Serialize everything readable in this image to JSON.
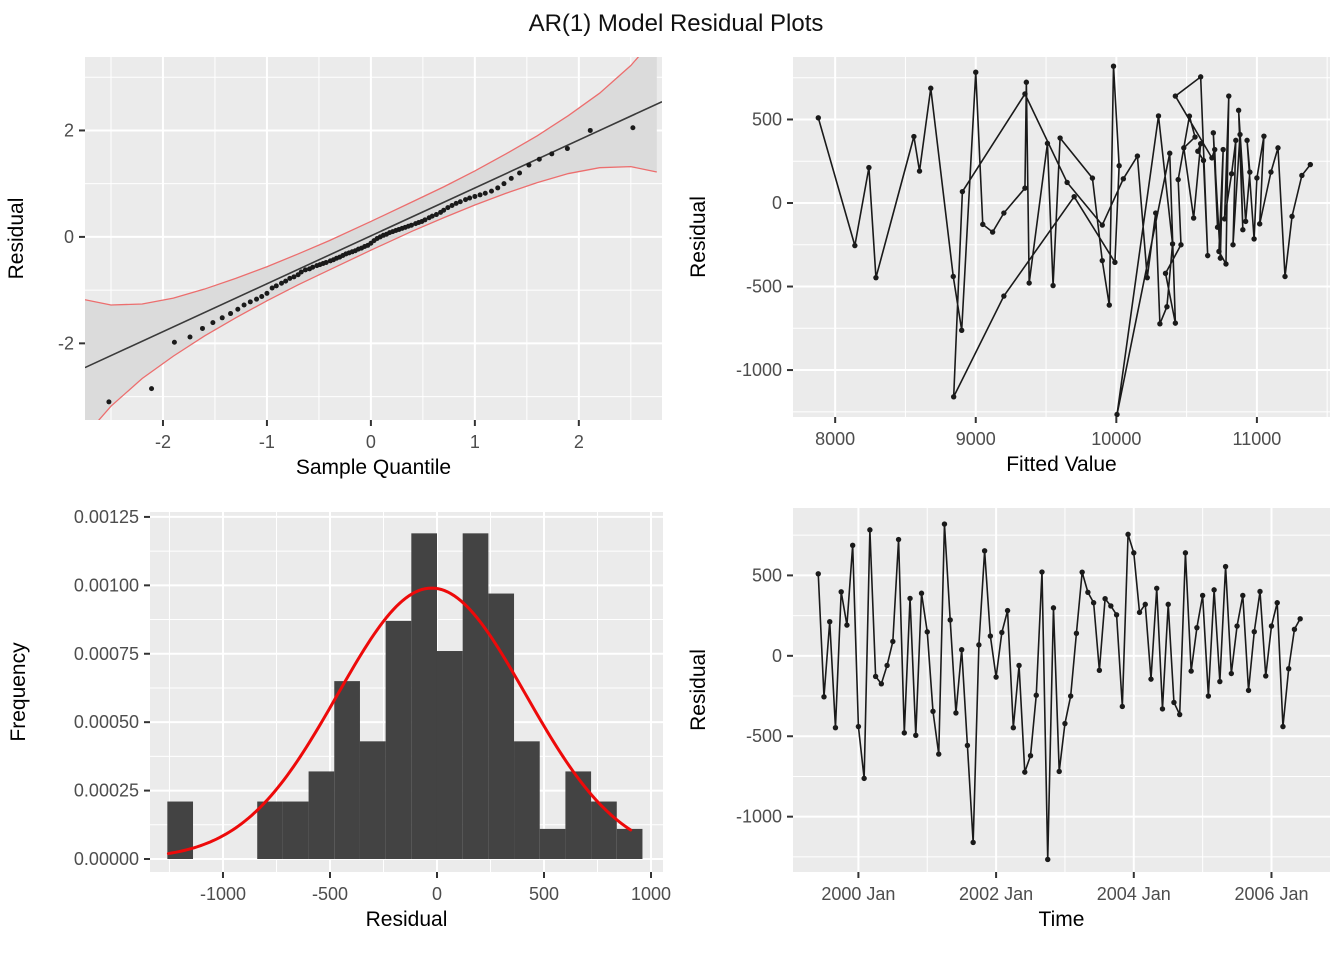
{
  "chart_data": {
    "figure_title": "AR(1) Model Residual Plots",
    "shared": {
      "residuals": [
        510,
        -255,
        212,
        -447,
        398,
        191,
        687,
        -440,
        -762,
        783,
        -128,
        -174,
        -60,
        89,
        723,
        -479,
        357,
        -494,
        389,
        149,
        -345,
        -611,
        819,
        223,
        -355,
        38,
        -557,
        -1160,
        68,
        653,
        123,
        -132,
        145,
        281,
        -447,
        -60,
        -723,
        -621,
        -245,
        521,
        -1266,
        298,
        -719,
        -421,
        -250,
        140,
        520,
        395,
        330,
        -90,
        355,
        310,
        255,
        -315,
        755,
        640,
        270,
        320,
        -145,
        420,
        -330,
        320,
        -290,
        -365,
        640,
        -95,
        175,
        375,
        -250,
        410,
        -160,
        555,
        -110,
        185,
        375,
        -215,
        150,
        400,
        -125,
        185,
        330,
        -440,
        -80,
        165,
        230
      ],
      "fitted_values": [
        7880,
        8140,
        8240,
        8290,
        8560,
        8600,
        8680,
        8840,
        8900,
        9000,
        9050,
        9120,
        9200,
        9350,
        9360,
        9380,
        9510,
        9550,
        9600,
        9830,
        9900,
        9950,
        9980,
        10020,
        9990,
        9700,
        9200,
        8843,
        8905,
        9350,
        9650,
        9900,
        10050,
        10150,
        10220,
        10280,
        10310,
        10360,
        10400,
        10300,
        10005,
        10380,
        10420,
        10350,
        10460,
        10440,
        10520,
        10560,
        10480,
        10550,
        10600,
        10580,
        10620,
        10650,
        10600,
        10420,
        10680,
        10700,
        10720,
        10690,
        10740,
        10760,
        10730,
        10780,
        10800,
        10770,
        10820,
        10850,
        10830,
        10880,
        10900,
        10870,
        10920,
        10950,
        10930,
        10980,
        11000,
        11050,
        11020,
        11100,
        11150,
        11200,
        11250,
        11320,
        11380
      ],
      "time_start_year": 1999.4167,
      "time_step_years": 0.0833333
    },
    "plots": [
      {
        "id": "qq",
        "type": "qq",
        "title_x": "Sample Quantile",
        "title_y": "Residual",
        "panel": [
          85,
          57,
          662,
          420
        ],
        "xlim": [
          -2.75,
          2.8
        ],
        "ylim": [
          -3.44,
          3.38
        ],
        "x_ticks": [
          -2,
          -1,
          0,
          1,
          2
        ],
        "x_tick_labels": [
          "-2",
          "-1",
          "0",
          "1",
          "2"
        ],
        "x_minor": [
          -2.5,
          -1.5,
          -0.5,
          0.5,
          1.5,
          2.5
        ],
        "y_ticks": [
          -2,
          0,
          2
        ],
        "y_tick_labels": [
          "-2",
          "0",
          "2"
        ],
        "y_minor": [
          -3,
          -1,
          1,
          3
        ],
        "ylabel_x": 23,
        "ref_line": {
          "intercept": 0.02,
          "slope": 0.9
        },
        "band": [
          [
            -2.75,
            -3.74,
            -1.18
          ],
          [
            -2.5,
            -3.18,
            -1.28
          ],
          [
            -2.2,
            -2.66,
            -1.26
          ],
          [
            -1.9,
            -2.24,
            -1.15
          ],
          [
            -1.6,
            -1.86,
            -0.98
          ],
          [
            -1.3,
            -1.52,
            -0.78
          ],
          [
            -1,
            -1.2,
            -0.56
          ],
          [
            -0.7,
            -0.9,
            -0.32
          ],
          [
            -0.4,
            -0.62,
            -0.07
          ],
          [
            0,
            -0.25,
            0.29
          ],
          [
            0.4,
            0.11,
            0.66
          ],
          [
            0.7,
            0.36,
            0.94
          ],
          [
            1,
            0.6,
            1.24
          ],
          [
            1.3,
            0.82,
            1.56
          ],
          [
            1.6,
            1.02,
            1.9
          ],
          [
            1.9,
            1.19,
            2.28
          ],
          [
            2.2,
            1.3,
            2.7
          ],
          [
            2.5,
            1.32,
            3.22
          ],
          [
            2.75,
            1.22,
            3.78
          ]
        ],
        "points": [
          [
            -2.52,
            -3.1
          ],
          [
            -2.11,
            -2.85
          ],
          [
            -1.89,
            -1.98
          ],
          [
            -1.74,
            -1.88
          ],
          [
            -1.62,
            -1.72
          ],
          [
            -1.52,
            -1.61
          ],
          [
            -1.43,
            -1.52
          ],
          [
            -1.35,
            -1.44
          ],
          [
            -1.28,
            -1.36
          ],
          [
            -1.22,
            -1.28
          ],
          [
            -1.16,
            -1.22
          ],
          [
            -1.1,
            -1.17
          ],
          [
            -1.05,
            -1.12
          ],
          [
            -1,
            -1.06
          ],
          [
            -0.95,
            -0.96
          ],
          [
            -0.91,
            -0.92
          ],
          [
            -0.86,
            -0.87
          ],
          [
            -0.82,
            -0.83
          ],
          [
            -0.78,
            -0.78
          ],
          [
            -0.74,
            -0.75
          ],
          [
            -0.7,
            -0.71
          ],
          [
            -0.67,
            -0.66
          ],
          [
            -0.63,
            -0.62
          ],
          [
            -0.59,
            -0.6
          ],
          [
            -0.56,
            -0.57
          ],
          [
            -0.52,
            -0.54
          ],
          [
            -0.49,
            -0.52
          ],
          [
            -0.46,
            -0.5
          ],
          [
            -0.43,
            -0.48
          ],
          [
            -0.39,
            -0.45
          ],
          [
            -0.36,
            -0.43
          ],
          [
            -0.33,
            -0.4
          ],
          [
            -0.3,
            -0.38
          ],
          [
            -0.27,
            -0.35
          ],
          [
            -0.24,
            -0.32
          ],
          [
            -0.21,
            -0.3
          ],
          [
            -0.18,
            -0.28
          ],
          [
            -0.15,
            -0.26
          ],
          [
            -0.12,
            -0.23
          ],
          [
            -0.09,
            -0.21
          ],
          [
            -0.06,
            -0.18
          ],
          [
            -0.03,
            -0.16
          ],
          [
            0,
            -0.12
          ],
          [
            0.03,
            -0.07
          ],
          [
            0.06,
            -0.03
          ],
          [
            0.09,
            0
          ],
          [
            0.12,
            0.03
          ],
          [
            0.15,
            0.05
          ],
          [
            0.18,
            0.08
          ],
          [
            0.21,
            0.1
          ],
          [
            0.24,
            0.12
          ],
          [
            0.27,
            0.14
          ],
          [
            0.3,
            0.16
          ],
          [
            0.33,
            0.18
          ],
          [
            0.36,
            0.2
          ],
          [
            0.39,
            0.22
          ],
          [
            0.43,
            0.25
          ],
          [
            0.46,
            0.27
          ],
          [
            0.49,
            0.29
          ],
          [
            0.52,
            0.32
          ],
          [
            0.56,
            0.36
          ],
          [
            0.59,
            0.39
          ],
          [
            0.63,
            0.42
          ],
          [
            0.67,
            0.46
          ],
          [
            0.7,
            0.5
          ],
          [
            0.74,
            0.55
          ],
          [
            0.78,
            0.59
          ],
          [
            0.82,
            0.63
          ],
          [
            0.86,
            0.66
          ],
          [
            0.91,
            0.7
          ],
          [
            0.95,
            0.73
          ],
          [
            1,
            0.76
          ],
          [
            1.05,
            0.79
          ],
          [
            1.1,
            0.82
          ],
          [
            1.16,
            0.86
          ],
          [
            1.22,
            0.92
          ],
          [
            1.28,
            1
          ],
          [
            1.35,
            1.1
          ],
          [
            1.43,
            1.2
          ],
          [
            1.52,
            1.35
          ],
          [
            1.62,
            1.46
          ],
          [
            1.74,
            1.56
          ],
          [
            1.89,
            1.66
          ],
          [
            2.11,
            2
          ],
          [
            2.52,
            2.05
          ]
        ]
      },
      {
        "id": "fitted",
        "type": "linepoints",
        "title_x": "Fitted Value",
        "title_y": "Residual",
        "panel": [
          793,
          57,
          1330,
          417
        ],
        "xlim": [
          7700,
          11520
        ],
        "ylim": [
          -1281,
          874
        ],
        "x_ticks": [
          8000,
          9000,
          10000,
          11000
        ],
        "x_tick_labels": [
          "8000",
          "9000",
          "10000",
          "11000"
        ],
        "x_minor": [
          8500,
          9500,
          10500,
          11500
        ],
        "y_ticks": [
          -1000,
          -500,
          0,
          500
        ],
        "y_tick_labels": [
          "-1000",
          "-500",
          "0",
          "500"
        ],
        "y_minor": [
          -1250,
          -750,
          -250,
          250,
          750
        ],
        "ylabel_x": 705,
        "x_key": "fitted_values",
        "y_key": "residuals"
      },
      {
        "id": "hist",
        "type": "hist",
        "title_x": "Residual",
        "title_y": "Frequency",
        "panel": [
          150,
          512,
          663,
          872
        ],
        "xlim": [
          -1341,
          1056
        ],
        "ylim": [
          -4.75e-05,
          0.001268
        ],
        "x_ticks": [
          -1000,
          -500,
          0,
          500,
          1000
        ],
        "x_tick_labels": [
          "-1000",
          "-500",
          "0",
          "500",
          "1000"
        ],
        "x_minor": [
          -1250,
          -750,
          -250,
          250,
          750
        ],
        "y_ticks": [
          0,
          0.00025,
          0.0005,
          0.00075,
          0.001,
          0.00125
        ],
        "y_tick_labels": [
          "0.00000",
          "0.00025",
          "0.00050",
          "0.00075",
          "0.00100",
          "0.00125"
        ],
        "y_minor": [
          0.000125,
          0.000375,
          0.000625,
          0.000875,
          0.001125
        ],
        "ylabel_x": 25,
        "bars": [
          [
            -1260,
            -1140,
            0.00021
          ],
          [
            -840,
            -720,
            0.00021
          ],
          [
            -720,
            -600,
            0.00021
          ],
          [
            -600,
            -480,
            0.00032
          ],
          [
            -480,
            -360,
            0.00065
          ],
          [
            -360,
            -240,
            0.00043
          ],
          [
            -240,
            -120,
            0.00087
          ],
          [
            -120,
            0,
            0.00119
          ],
          [
            0,
            120,
            0.00076
          ],
          [
            120,
            240,
            0.00119
          ],
          [
            240,
            360,
            0.00097
          ],
          [
            360,
            480,
            0.00043
          ],
          [
            480,
            600,
            0.00011
          ],
          [
            600,
            720,
            0.00032
          ],
          [
            720,
            840,
            0.00021
          ],
          [
            840,
            960,
            0.00011
          ]
        ],
        "normal_curve": {
          "mean": -25,
          "sd": 440,
          "peak": 0.00099,
          "range": [
            -1255,
            905
          ]
        }
      },
      {
        "id": "time",
        "type": "linepoints",
        "title_x": "Time",
        "title_y": "Residual",
        "panel": [
          793,
          508,
          1330,
          872
        ],
        "xlim": [
          1999.05,
          2006.85
        ],
        "ylim": [
          -1344,
          919
        ],
        "x_ticks": [
          2000,
          2002,
          2004,
          2006
        ],
        "x_tick_labels": [
          "2000 Jan",
          "2002 Jan",
          "2004 Jan",
          "2006 Jan"
        ],
        "x_minor": [
          2001,
          2003,
          2005
        ],
        "y_ticks": [
          -1000,
          -500,
          0,
          500
        ],
        "y_tick_labels": [
          "-1000",
          "-500",
          "0",
          "500"
        ],
        "y_minor": [
          -1250,
          -750,
          -250,
          250,
          750
        ],
        "ylabel_x": 705,
        "x_from_time": true,
        "y_key": "residuals"
      }
    ],
    "style": {
      "panel_bg": "#EBEBEB",
      "grid_color": "#FFFFFF",
      "bar_fill": "#434343",
      "red_curve": "#ED0A0A",
      "band_fill": "#DBDBDB",
      "band_line": "#EC6E6E",
      "series_color": "#1A1A1A",
      "ref_line_color": "#3A3A3A",
      "tick_mark_color": "#333333",
      "tick_text_color": "#4D4D4D"
    }
  }
}
